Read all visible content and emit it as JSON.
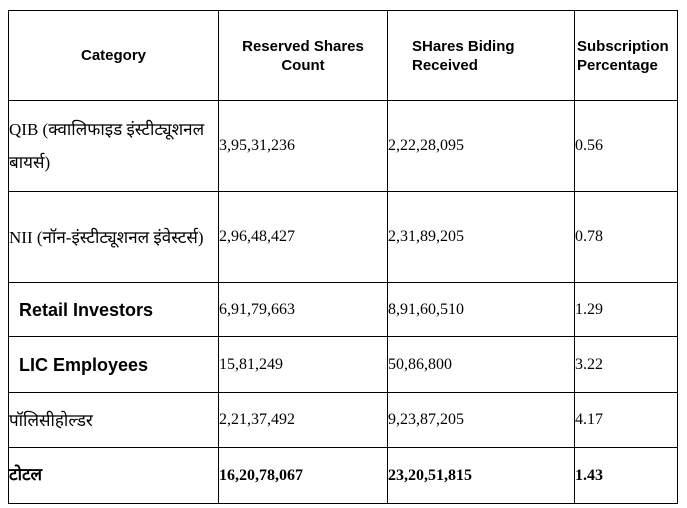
{
  "headers": {
    "category": "Category",
    "reserved": "Reserved Shares Count",
    "bids": "SHares Biding Received",
    "subscription": "Subscription Percentage"
  },
  "rows": [
    {
      "category": "QIB (क्वालिफाइड इंस्टीट्यूशनल बायर्स)",
      "reserved": "3,95,31,236",
      "bids": "2,22,28,095",
      "pct": "0.56"
    },
    {
      "category": "NII (नॉन-इंस्टीट्यूशनल इंवेस्टर्स)",
      "reserved": "2,96,48,427",
      "bids": "2,31,89,205",
      "pct": "0.78"
    },
    {
      "category": "Retail Investors",
      "reserved": "6,91,79,663",
      "bids": "8,91,60,510",
      "pct": "1.29"
    },
    {
      "category": "LIC Employees",
      "reserved": "15,81,249",
      "bids": "50,86,800",
      "pct": "3.22"
    },
    {
      "category": "पॉलिसीहोल्डर",
      "reserved": "2,21,37,492",
      "bids": "9,23,87,205",
      "pct": "4.17"
    },
    {
      "category": "टोटल",
      "reserved": "16,20,78,067",
      "bids": "23,20,51,815",
      "pct": "1.43"
    }
  ]
}
